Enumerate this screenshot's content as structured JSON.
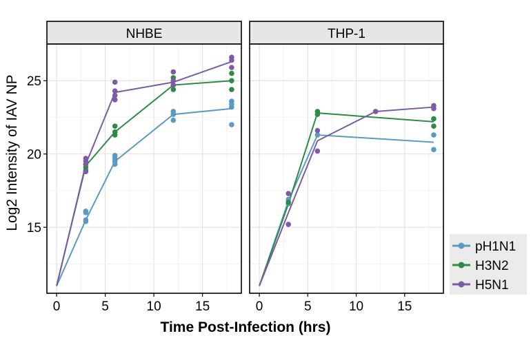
{
  "chart_data": {
    "type": "scatter",
    "ylabel": "Log2 Intensity of IAV NP",
    "xlabel": "Time Post-Infection (hrs)",
    "xlim": [
      -1,
      19
    ],
    "ylim": [
      10.5,
      27.5
    ],
    "x_ticks": [
      0,
      5,
      10,
      15
    ],
    "y_ticks": [
      15,
      20,
      25
    ],
    "x_tick_labels": [
      "0",
      "5",
      "10",
      "15"
    ],
    "y_tick_labels": [
      "15",
      "20",
      "25"
    ],
    "grid": true,
    "legend_position": "right-bottom",
    "legend": [
      {
        "name": "pH1N1",
        "color": "#5b9ac4"
      },
      {
        "name": "H3N2",
        "color": "#2e8b46"
      },
      {
        "name": "H5N1",
        "color": "#7b5aa6"
      }
    ],
    "panels": [
      {
        "title": "NHBE",
        "series": [
          {
            "name": "pH1N1",
            "color": "#5b9ac4",
            "line": [
              [
                0,
                11
              ],
              [
                3,
                15.5
              ],
              [
                6,
                19.5
              ],
              [
                12,
                22.7
              ],
              [
                18,
                23.1
              ]
            ],
            "points": [
              [
                3,
                15.4
              ],
              [
                3,
                15.5
              ],
              [
                3,
                16.0
              ],
              [
                3,
                16.1
              ],
              [
                6,
                19.3
              ],
              [
                6,
                19.5
              ],
              [
                6,
                19.7
              ],
              [
                6,
                19.9
              ],
              [
                12,
                22.3
              ],
              [
                12,
                22.7
              ],
              [
                12,
                22.9
              ],
              [
                18,
                22.0
              ],
              [
                18,
                23.2
              ],
              [
                18,
                23.4
              ],
              [
                18,
                23.6
              ]
            ]
          },
          {
            "name": "H3N2",
            "color": "#2e8b46",
            "line": [
              [
                0,
                11
              ],
              [
                3,
                19.2
              ],
              [
                6,
                21.5
              ],
              [
                12,
                24.7
              ],
              [
                18,
                25.0
              ]
            ],
            "points": [
              [
                3,
                18.9
              ],
              [
                3,
                19.1
              ],
              [
                3,
                19.3
              ],
              [
                6,
                21.3
              ],
              [
                6,
                21.5
              ],
              [
                6,
                21.9
              ],
              [
                12,
                24.4
              ],
              [
                12,
                24.7
              ],
              [
                12,
                25.2
              ],
              [
                18,
                24.4
              ],
              [
                18,
                25.0
              ],
              [
                18,
                25.5
              ]
            ]
          },
          {
            "name": "H5N1",
            "color": "#7b5aa6",
            "line": [
              [
                0,
                11
              ],
              [
                3,
                19.3
              ],
              [
                6,
                24.2
              ],
              [
                12,
                24.9
              ],
              [
                18,
                26.3
              ]
            ],
            "points": [
              [
                3,
                18.8
              ],
              [
                3,
                19.3
              ],
              [
                3,
                19.5
              ],
              [
                3,
                19.7
              ],
              [
                6,
                23.7
              ],
              [
                6,
                24.0
              ],
              [
                6,
                24.3
              ],
              [
                6,
                24.9
              ],
              [
                12,
                24.7
              ],
              [
                12,
                25.0
              ],
              [
                12,
                25.6
              ],
              [
                18,
                25.9
              ],
              [
                18,
                26.4
              ],
              [
                18,
                26.6
              ]
            ]
          }
        ]
      },
      {
        "title": "THP-1",
        "series": [
          {
            "name": "pH1N1",
            "color": "#5b9ac4",
            "line": [
              [
                0,
                11
              ],
              [
                3,
                16.8
              ],
              [
                6,
                21.3
              ],
              [
                18,
                20.8
              ]
            ],
            "points": [
              [
                3,
                16.6
              ],
              [
                3,
                16.9
              ],
              [
                6,
                21.3
              ],
              [
                18,
                20.3
              ],
              [
                18,
                21.3
              ]
            ]
          },
          {
            "name": "H3N2",
            "color": "#2e8b46",
            "line": [
              [
                0,
                11
              ],
              [
                3,
                16.6
              ],
              [
                6,
                22.8
              ],
              [
                18,
                22.2
              ]
            ],
            "points": [
              [
                3,
                16.7
              ],
              [
                6,
                22.7
              ],
              [
                6,
                22.9
              ],
              [
                18,
                21.9
              ],
              [
                18,
                22.4
              ]
            ]
          },
          {
            "name": "H5N1",
            "color": "#7b5aa6",
            "line": [
              [
                0,
                11
              ],
              [
                3,
                16.0
              ],
              [
                6,
                20.9
              ],
              [
                12,
                22.9
              ],
              [
                18,
                23.2
              ]
            ],
            "points": [
              [
                3,
                15.2
              ],
              [
                3,
                17.3
              ],
              [
                6,
                20.2
              ],
              [
                6,
                21.6
              ],
              [
                12,
                22.9
              ],
              [
                18,
                23.1
              ],
              [
                18,
                23.3
              ]
            ]
          }
        ]
      }
    ]
  }
}
